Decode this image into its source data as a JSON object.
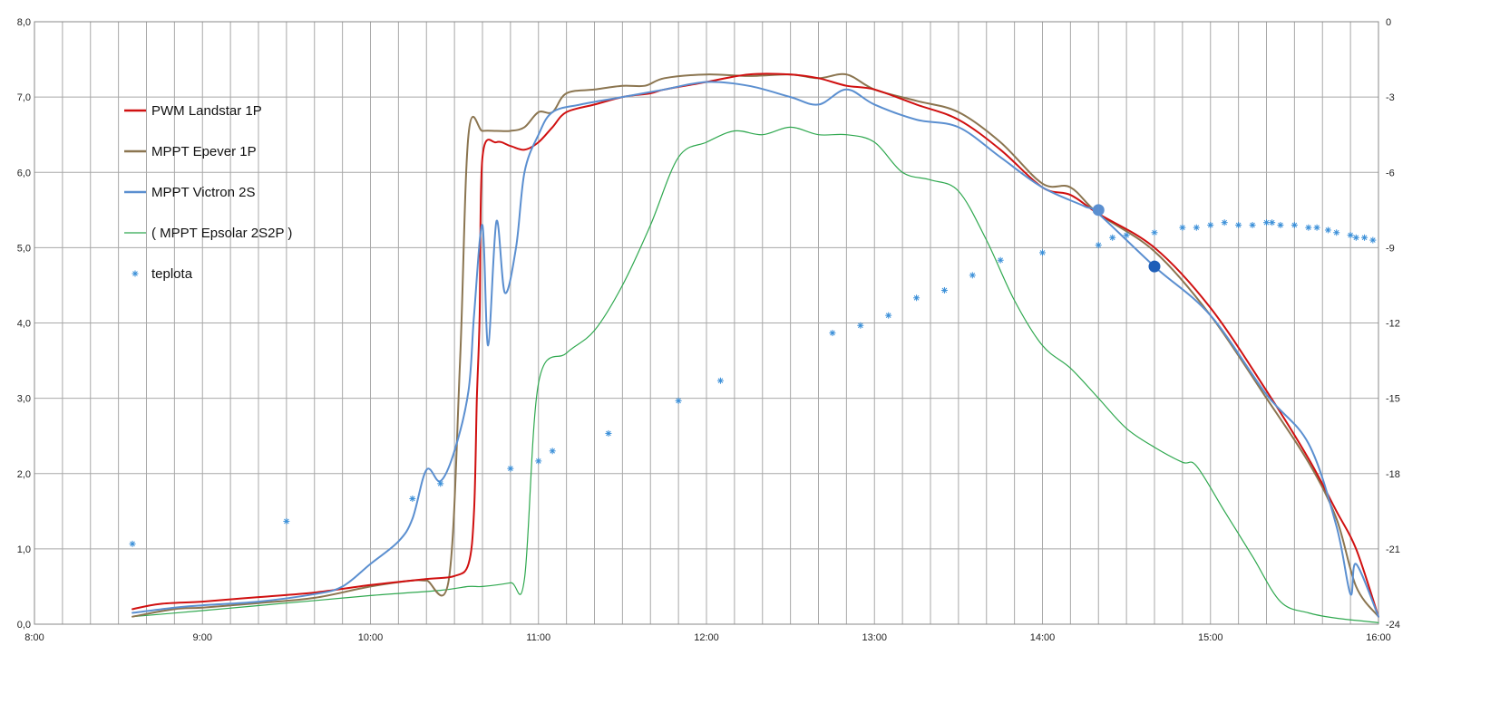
{
  "chart_data": {
    "type": "line",
    "title": "",
    "xlabel": "",
    "ylabel": "",
    "y2label": "",
    "x_range": [
      "8:00",
      "16:00"
    ],
    "xticks": [
      "8:00",
      "9:00",
      "10:00",
      "11:00",
      "12:00",
      "13:00",
      "14:00",
      "15:00",
      "16:00"
    ],
    "ylim": [
      0,
      8
    ],
    "yticks": [
      "0,0",
      "1,0",
      "2,0",
      "3,0",
      "4,0",
      "5,0",
      "6,0",
      "7,0",
      "8,0"
    ],
    "y2lim": [
      -24,
      0
    ],
    "y2ticks": [
      "-24",
      "-21",
      "-18",
      "-15",
      "-12",
      "-9",
      "-6",
      "-3",
      "0"
    ],
    "grid": true,
    "legend_position": "upper-left",
    "series": [
      {
        "name": "PWM Landstar 1P",
        "color": "#d01010",
        "axis": "left",
        "kind": "line",
        "points": [
          [
            "8:35",
            0.2
          ],
          [
            "8:45",
            0.27
          ],
          [
            "9:00",
            0.3
          ],
          [
            "9:20",
            0.36
          ],
          [
            "9:40",
            0.42
          ],
          [
            "10:00",
            0.52
          ],
          [
            "10:20",
            0.6
          ],
          [
            "10:30",
            0.64
          ],
          [
            "10:35",
            0.8
          ],
          [
            "10:37",
            1.5
          ],
          [
            "10:38",
            3.0
          ],
          [
            "10:39",
            4.1
          ],
          [
            "10:40",
            6.2
          ],
          [
            "10:45",
            6.4
          ],
          [
            "10:50",
            6.35
          ],
          [
            "10:55",
            6.3
          ],
          [
            "11:00",
            6.4
          ],
          [
            "11:05",
            6.6
          ],
          [
            "11:10",
            6.8
          ],
          [
            "11:20",
            6.9
          ],
          [
            "11:30",
            7.0
          ],
          [
            "11:40",
            7.05
          ],
          [
            "11:45",
            7.1
          ],
          [
            "12:00",
            7.2
          ],
          [
            "12:15",
            7.3
          ],
          [
            "12:30",
            7.3
          ],
          [
            "12:40",
            7.25
          ],
          [
            "12:50",
            7.15
          ],
          [
            "13:00",
            7.1
          ],
          [
            "13:15",
            6.9
          ],
          [
            "13:30",
            6.7
          ],
          [
            "13:45",
            6.3
          ],
          [
            "14:00",
            5.8
          ],
          [
            "14:10",
            5.7
          ],
          [
            "14:20",
            5.45
          ],
          [
            "14:40",
            5.0
          ],
          [
            "15:00",
            4.2
          ],
          [
            "15:20",
            3.1
          ],
          [
            "15:35",
            2.2
          ],
          [
            "15:45",
            1.5
          ],
          [
            "15:52",
            1.0
          ],
          [
            "16:00",
            0.1
          ]
        ]
      },
      {
        "name": "MPPT Epever 1P",
        "color": "#8b7550",
        "axis": "left",
        "kind": "line",
        "points": [
          [
            "8:35",
            0.1
          ],
          [
            "8:50",
            0.2
          ],
          [
            "9:00",
            0.22
          ],
          [
            "9:20",
            0.28
          ],
          [
            "9:40",
            0.35
          ],
          [
            "10:00",
            0.5
          ],
          [
            "10:15",
            0.58
          ],
          [
            "10:20",
            0.58
          ],
          [
            "10:28",
            0.6
          ],
          [
            "10:32",
            3.5
          ],
          [
            "10:35",
            6.5
          ],
          [
            "10:40",
            6.55
          ],
          [
            "10:45",
            6.55
          ],
          [
            "10:50",
            6.55
          ],
          [
            "10:55",
            6.6
          ],
          [
            "11:00",
            6.8
          ],
          [
            "11:05",
            6.8
          ],
          [
            "11:10",
            7.05
          ],
          [
            "11:20",
            7.1
          ],
          [
            "11:30",
            7.15
          ],
          [
            "11:38",
            7.15
          ],
          [
            "11:45",
            7.25
          ],
          [
            "12:00",
            7.3
          ],
          [
            "12:15",
            7.28
          ],
          [
            "12:30",
            7.3
          ],
          [
            "12:40",
            7.25
          ],
          [
            "12:50",
            7.3
          ],
          [
            "13:00",
            7.1
          ],
          [
            "13:15",
            6.95
          ],
          [
            "13:30",
            6.8
          ],
          [
            "13:45",
            6.4
          ],
          [
            "14:00",
            5.85
          ],
          [
            "14:10",
            5.8
          ],
          [
            "14:20",
            5.45
          ],
          [
            "14:40",
            4.95
          ],
          [
            "15:00",
            4.1
          ],
          [
            "15:20",
            3.0
          ],
          [
            "15:35",
            2.15
          ],
          [
            "15:45",
            1.4
          ],
          [
            "15:52",
            0.5
          ],
          [
            "16:00",
            0.1
          ]
        ]
      },
      {
        "name": "MPPT Victron 2S",
        "color": "#5b8fd0",
        "axis": "left",
        "kind": "line",
        "points": [
          [
            "8:35",
            0.15
          ],
          [
            "8:50",
            0.22
          ],
          [
            "9:00",
            0.25
          ],
          [
            "9:20",
            0.3
          ],
          [
            "9:40",
            0.4
          ],
          [
            "9:50",
            0.5
          ],
          [
            "10:00",
            0.8
          ],
          [
            "10:10",
            1.1
          ],
          [
            "10:15",
            1.4
          ],
          [
            "10:20",
            2.05
          ],
          [
            "10:25",
            1.9
          ],
          [
            "10:30",
            2.3
          ],
          [
            "10:35",
            3.1
          ],
          [
            "10:37",
            4.1
          ],
          [
            "10:40",
            5.3
          ],
          [
            "10:42",
            3.7
          ],
          [
            "10:45",
            5.35
          ],
          [
            "10:48",
            4.4
          ],
          [
            "10:52",
            5.0
          ],
          [
            "10:55",
            6.0
          ],
          [
            "11:00",
            6.5
          ],
          [
            "11:05",
            6.8
          ],
          [
            "11:15",
            6.9
          ],
          [
            "11:30",
            7.0
          ],
          [
            "11:45",
            7.1
          ],
          [
            "12:00",
            7.2
          ],
          [
            "12:15",
            7.15
          ],
          [
            "12:30",
            7.0
          ],
          [
            "12:40",
            6.9
          ],
          [
            "12:50",
            7.1
          ],
          [
            "13:00",
            6.9
          ],
          [
            "13:15",
            6.7
          ],
          [
            "13:30",
            6.6
          ],
          [
            "13:45",
            6.2
          ],
          [
            "14:00",
            5.8
          ],
          [
            "14:15",
            5.55
          ],
          [
            "14:20",
            5.45
          ],
          [
            "14:40",
            4.75
          ],
          [
            "15:00",
            4.1
          ],
          [
            "15:20",
            3.05
          ],
          [
            "15:35",
            2.4
          ],
          [
            "15:45",
            1.3
          ],
          [
            "15:50",
            0.4
          ],
          [
            "15:52",
            0.8
          ],
          [
            "16:00",
            0.1
          ]
        ]
      },
      {
        "name": "( MPPT Epsolar 2S2P )",
        "color": "#2fa84f",
        "axis": "left",
        "kind": "line",
        "points": [
          [
            "8:35",
            0.1
          ],
          [
            "9:00",
            0.18
          ],
          [
            "9:30",
            0.28
          ],
          [
            "10:00",
            0.38
          ],
          [
            "10:25",
            0.45
          ],
          [
            "10:35",
            0.5
          ],
          [
            "10:40",
            0.5
          ],
          [
            "10:50",
            0.55
          ],
          [
            "10:55",
            0.6
          ],
          [
            "11:00",
            3.2
          ],
          [
            "11:10",
            3.6
          ],
          [
            "11:20",
            3.9
          ],
          [
            "11:30",
            4.5
          ],
          [
            "11:40",
            5.3
          ],
          [
            "11:50",
            6.2
          ],
          [
            "12:00",
            6.4
          ],
          [
            "12:10",
            6.55
          ],
          [
            "12:20",
            6.5
          ],
          [
            "12:30",
            6.6
          ],
          [
            "12:40",
            6.5
          ],
          [
            "12:50",
            6.5
          ],
          [
            "13:00",
            6.4
          ],
          [
            "13:10",
            6.0
          ],
          [
            "13:20",
            5.9
          ],
          [
            "13:30",
            5.75
          ],
          [
            "13:40",
            5.1
          ],
          [
            "13:50",
            4.3
          ],
          [
            "14:00",
            3.7
          ],
          [
            "14:10",
            3.4
          ],
          [
            "14:20",
            3.0
          ],
          [
            "14:30",
            2.6
          ],
          [
            "14:40",
            2.35
          ],
          [
            "14:50",
            2.15
          ],
          [
            "14:55",
            2.1
          ],
          [
            "15:05",
            1.5
          ],
          [
            "15:15",
            0.9
          ],
          [
            "15:25",
            0.3
          ],
          [
            "15:35",
            0.15
          ],
          [
            "15:45",
            0.08
          ],
          [
            "16:00",
            0.02
          ]
        ]
      },
      {
        "name": "teplota",
        "color": "#3a8fd8",
        "axis": "right",
        "kind": "scatter",
        "points": [
          [
            "8:35",
            -20.8
          ],
          [
            "9:30",
            -19.9
          ],
          [
            "10:15",
            -19.0
          ],
          [
            "10:25",
            -18.4
          ],
          [
            "10:50",
            -17.8
          ],
          [
            "11:00",
            -17.5
          ],
          [
            "11:05",
            -17.1
          ],
          [
            "11:25",
            -16.4
          ],
          [
            "11:50",
            -15.1
          ],
          [
            "12:05",
            -14.3
          ],
          [
            "12:45",
            -12.4
          ],
          [
            "12:55",
            -12.1
          ],
          [
            "13:05",
            -11.7
          ],
          [
            "13:15",
            -11.0
          ],
          [
            "13:25",
            -10.7
          ],
          [
            "13:35",
            -10.1
          ],
          [
            "13:45",
            -9.5
          ],
          [
            "14:00",
            -9.2
          ],
          [
            "14:20",
            -8.9
          ],
          [
            "14:25",
            -8.6
          ],
          [
            "14:30",
            -8.5
          ],
          [
            "14:40",
            -8.4
          ],
          [
            "14:50",
            -8.2
          ],
          [
            "14:55",
            -8.2
          ],
          [
            "15:00",
            -8.1
          ],
          [
            "15:05",
            -8.0
          ],
          [
            "15:10",
            -8.1
          ],
          [
            "15:15",
            -8.1
          ],
          [
            "15:20",
            -8.0
          ],
          [
            "15:22",
            -8.0
          ],
          [
            "15:25",
            -8.1
          ],
          [
            "15:30",
            -8.1
          ],
          [
            "15:35",
            -8.2
          ],
          [
            "15:38",
            -8.2
          ],
          [
            "15:42",
            -8.3
          ],
          [
            "15:45",
            -8.4
          ],
          [
            "15:50",
            -8.5
          ],
          [
            "15:52",
            -8.6
          ],
          [
            "15:55",
            -8.6
          ],
          [
            "15:58",
            -8.7
          ]
        ]
      }
    ],
    "markers": [
      {
        "series": "MPPT Victron 2S",
        "x": "14:20",
        "y": 5.5,
        "color": "#5b8fd0"
      },
      {
        "series": "MPPT Victron 2S",
        "x": "14:40",
        "y": 4.75,
        "color": "#1f5fb8"
      }
    ]
  }
}
